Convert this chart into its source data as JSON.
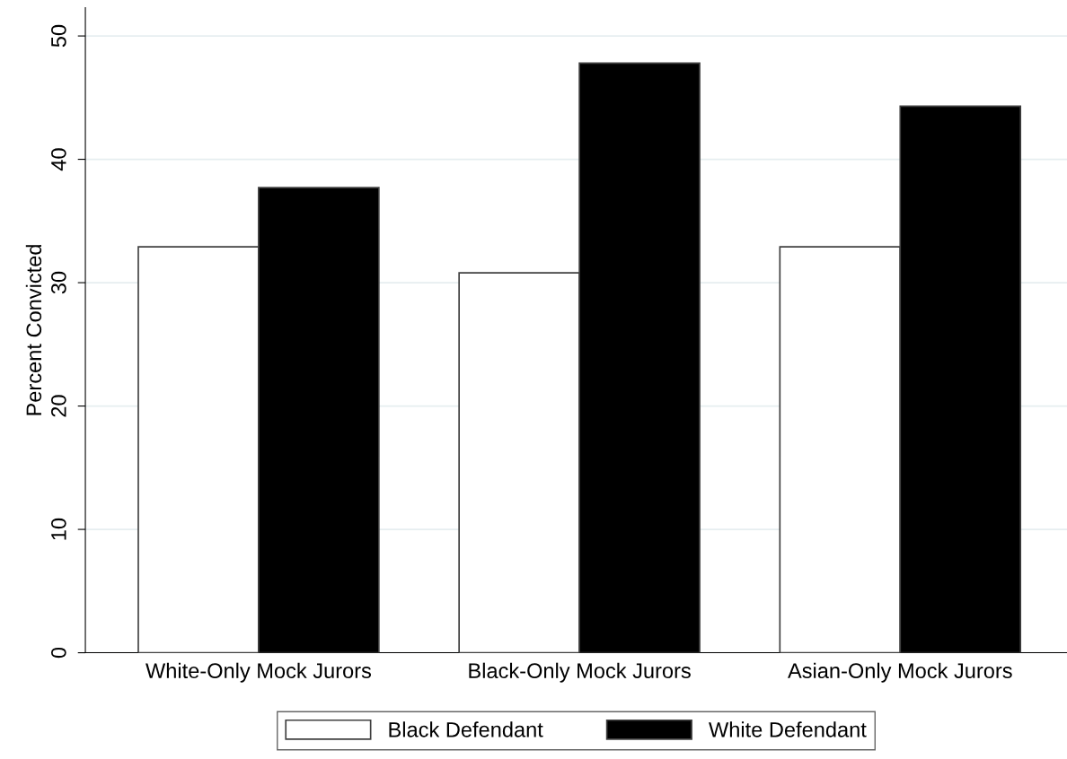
{
  "chart_data": {
    "type": "bar",
    "ylabel": "Percent Convicted",
    "categories": [
      "White-Only Mock Jurors",
      "Black-Only Mock Jurors",
      "Asian-Only Mock Jurors"
    ],
    "series": [
      {
        "name": "Black Defendant",
        "color": "#ffffff",
        "values": [
          32.9,
          30.8,
          32.9
        ]
      },
      {
        "name": "White Defendant",
        "color": "#000000",
        "values": [
          37.7,
          47.8,
          44.3
        ]
      }
    ],
    "ylim": [
      0,
      52.3
    ],
    "yticks": [
      0,
      10,
      20,
      30,
      40,
      50
    ],
    "grid": "y",
    "legend": "bottom"
  }
}
